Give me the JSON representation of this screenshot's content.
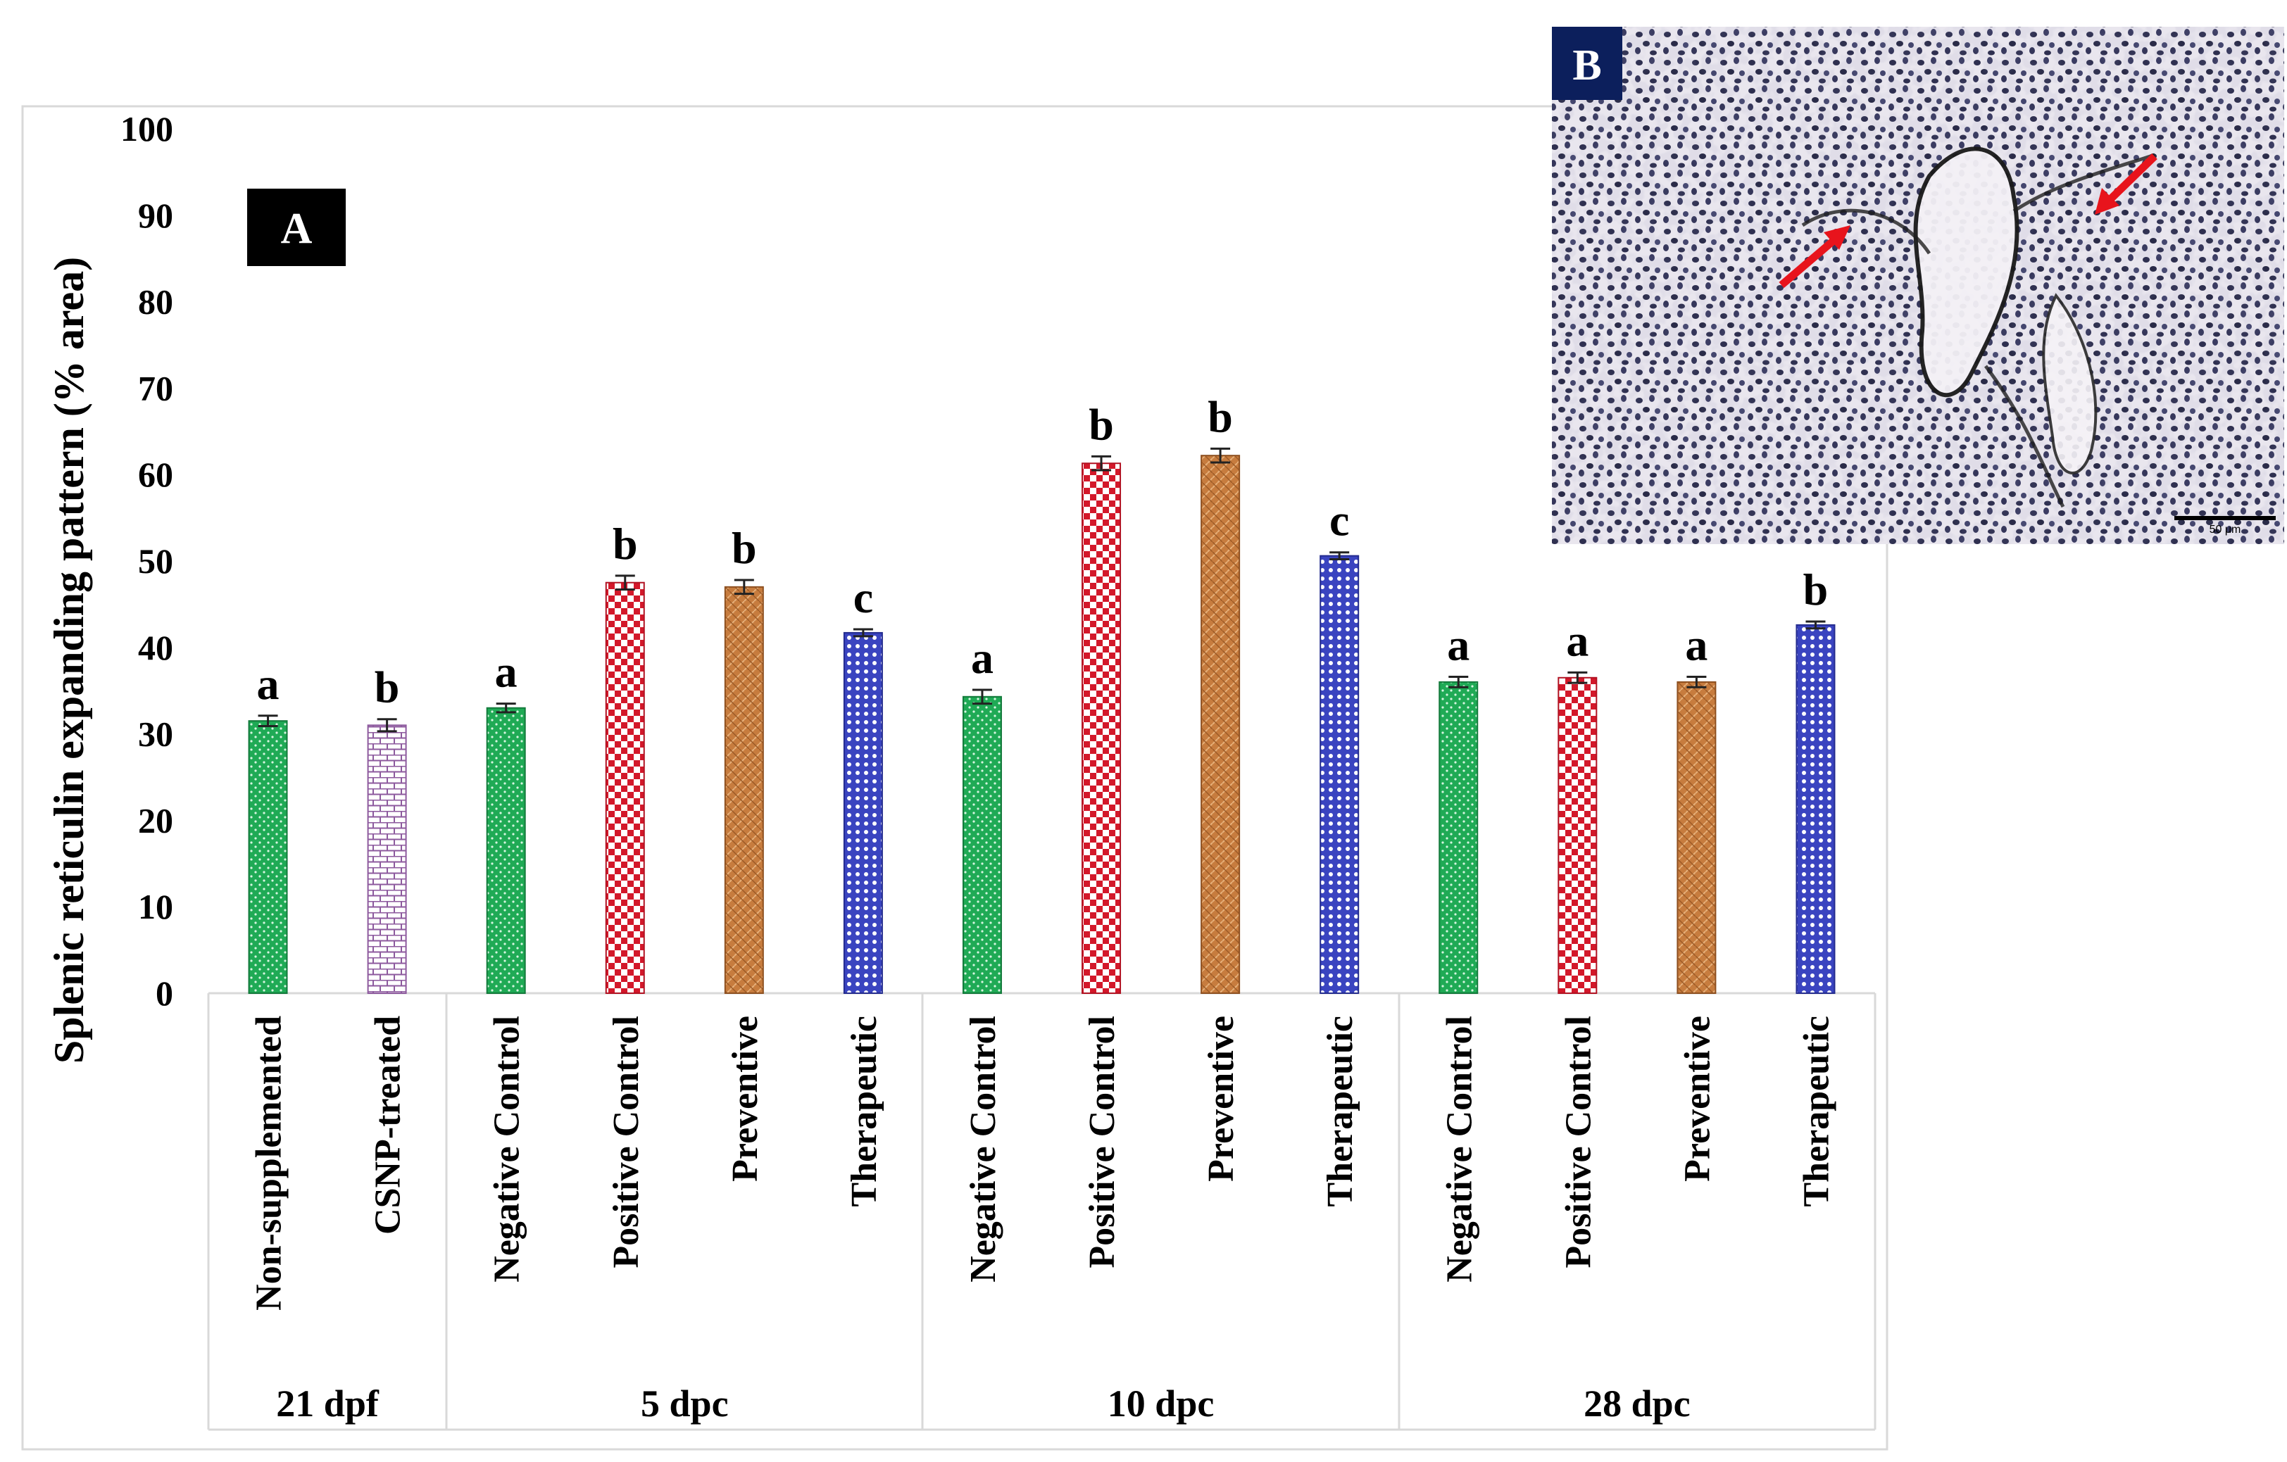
{
  "chart_data": {
    "type": "bar",
    "panel_label": "A",
    "ylabel": "Splenic reticulin expanding pattern (% area)",
    "xlabel": "",
    "ylim": [
      0,
      100
    ],
    "yticks": [
      0,
      10,
      20,
      30,
      40,
      50,
      60,
      70,
      80,
      90,
      100
    ],
    "grid": false,
    "legend": "none",
    "groups": [
      {
        "name": "21 dpf",
        "bars": [
          {
            "label": "Non-supplemented",
            "value": 31.5,
            "error": 0.6,
            "sig": "a",
            "pattern": "green"
          },
          {
            "label": "CSNP-treated",
            "value": 31.0,
            "error": 0.7,
            "sig": "b",
            "pattern": "brick"
          }
        ]
      },
      {
        "name": "5 dpc",
        "bars": [
          {
            "label": "Negative Control",
            "value": 33.0,
            "error": 0.5,
            "sig": "a",
            "pattern": "green"
          },
          {
            "label": "Positive Control",
            "value": 47.5,
            "error": 0.8,
            "sig": "b",
            "pattern": "check"
          },
          {
            "label": "Preventive",
            "value": 47.0,
            "error": 0.8,
            "sig": "b",
            "pattern": "orange"
          },
          {
            "label": "Therapeutic",
            "value": 41.7,
            "error": 0.4,
            "sig": "c",
            "pattern": "blue"
          }
        ]
      },
      {
        "name": "10 dpc",
        "bars": [
          {
            "label": "Negative Control",
            "value": 34.3,
            "error": 0.8,
            "sig": "a",
            "pattern": "green"
          },
          {
            "label": "Positive Control",
            "value": 61.3,
            "error": 0.8,
            "sig": "b",
            "pattern": "check"
          },
          {
            "label": "Preventive",
            "value": 62.2,
            "error": 0.8,
            "sig": "b",
            "pattern": "orange"
          },
          {
            "label": "Therapeutic",
            "value": 50.6,
            "error": 0.4,
            "sig": "c",
            "pattern": "blue"
          }
        ]
      },
      {
        "name": "28 dpc",
        "bars": [
          {
            "label": "Negative Control",
            "value": 36.0,
            "error": 0.6,
            "sig": "a",
            "pattern": "green"
          },
          {
            "label": "Positive Control",
            "value": 36.5,
            "error": 0.6,
            "sig": "a",
            "pattern": "check"
          },
          {
            "label": "Preventive",
            "value": 36.0,
            "error": 0.6,
            "sig": "a",
            "pattern": "orange"
          },
          {
            "label": "Therapeutic",
            "value": 42.6,
            "error": 0.4,
            "sig": "b",
            "pattern": "blue"
          }
        ]
      }
    ]
  },
  "micrograph": {
    "panel_label": "B",
    "arrow_color": "#e8141c",
    "scale_text": "50 μm"
  },
  "colors": {
    "green": "#1faa55",
    "check_red": "#d3182a",
    "orange": "#c77c3e",
    "blue": "#3a44c0",
    "brick": "#8d5a9e",
    "label_bg": "#000000",
    "b_label_bg": "#0c1f5c"
  }
}
